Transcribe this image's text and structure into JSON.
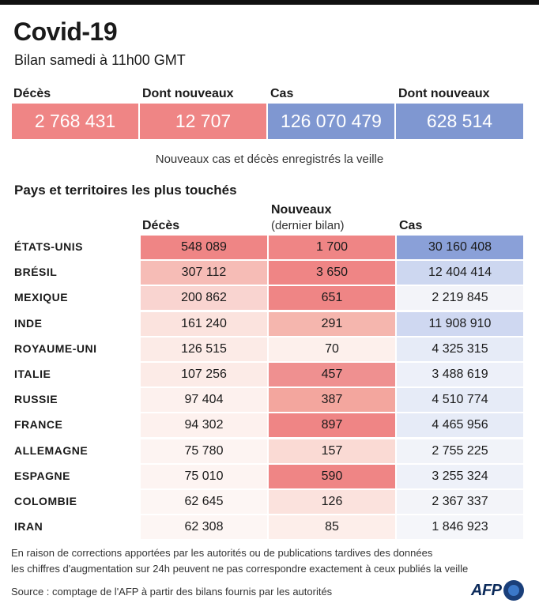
{
  "title": "Covid-19",
  "subtitle": "Bilan samedi à 11h00 GMT",
  "stats": [
    {
      "label": "Décès",
      "value": "2 768 431",
      "color": "#ef8585"
    },
    {
      "label": "Dont nouveaux",
      "value": "12 707",
      "color": "#ef8585"
    },
    {
      "label": "Cas",
      "value": "126 070 479",
      "color": "#7f97d1"
    },
    {
      "label": "Dont nouveaux",
      "value": "628 514",
      "color": "#7f97d1"
    }
  ],
  "note_top": "Nouveaux cas et décès enregistrés la veille",
  "section_title": "Pays et territoires les plus touchés",
  "columns": {
    "deaths": "Décès",
    "new": "Nouveaux",
    "new_sub": "(dernier bilan)",
    "cases": "Cas"
  },
  "rows": [
    {
      "country": "ÉTATS-UNIS",
      "deaths": "548 089",
      "new": "1 700",
      "cases": "30 160 408",
      "deaths_c": "#ef8585",
      "new_c": "#ef8585",
      "cases_c": "#8aa0d8"
    },
    {
      "country": "BRÉSIL",
      "deaths": "307 112",
      "new": "3 650",
      "cases": "12 404 414",
      "deaths_c": "#f6bcb6",
      "new_c": "#ef8585",
      "cases_c": "#cdd7f0"
    },
    {
      "country": "MEXIQUE",
      "deaths": "200 862",
      "new": "651",
      "cases": "2 219 845",
      "deaths_c": "#f9d4d0",
      "new_c": "#ef8585",
      "cases_c": "#f3f4f9"
    },
    {
      "country": "INDE",
      "deaths": "161 240",
      "new": "291",
      "cases": "11 908 910",
      "deaths_c": "#fbe3de",
      "new_c": "#f5b6ae",
      "cases_c": "#cfd8f1"
    },
    {
      "country": "ROYAUME-UNI",
      "deaths": "126 515",
      "new": "70",
      "cases": "4 325 315",
      "deaths_c": "#fcebe7",
      "new_c": "#fdf0ec",
      "cases_c": "#e6ebf7"
    },
    {
      "country": "ITALIE",
      "deaths": "107 256",
      "new": "457",
      "cases": "3 488 619",
      "deaths_c": "#fcebe7",
      "new_c": "#ef9090",
      "cases_c": "#edf0f9"
    },
    {
      "country": "RUSSIE",
      "deaths": "97 404",
      "new": "387",
      "cases": "4 510 774",
      "deaths_c": "#fdf1ee",
      "new_c": "#f3a69e",
      "cases_c": "#e6ebf7"
    },
    {
      "country": "FRANCE",
      "deaths": "94 302",
      "new": "897",
      "cases": "4 465 956",
      "deaths_c": "#fdf1ee",
      "new_c": "#ef8585",
      "cases_c": "#e6ebf7"
    },
    {
      "country": "ALLEMAGNE",
      "deaths": "75 780",
      "new": "157",
      "cases": "2 755 225",
      "deaths_c": "#fdf4f2",
      "new_c": "#fadad4",
      "cases_c": "#f1f3f9"
    },
    {
      "country": "ESPAGNE",
      "deaths": "75 010",
      "new": "590",
      "cases": "3 255 324",
      "deaths_c": "#fdf4f2",
      "new_c": "#ef8585",
      "cases_c": "#eef1f9"
    },
    {
      "country": "COLOMBIE",
      "deaths": "62 645",
      "new": "126",
      "cases": "2 367 337",
      "deaths_c": "#fdf6f4",
      "new_c": "#fbe2dd",
      "cases_c": "#f3f4f9"
    },
    {
      "country": "IRAN",
      "deaths": "62 308",
      "new": "85",
      "cases": "1 846 923",
      "deaths_c": "#fdf6f4",
      "new_c": "#fdeeea",
      "cases_c": "#f5f6fa"
    }
  ],
  "footnote_line1": "En raison de corrections apportées par les autorités ou de publications tardives des données",
  "footnote_line2": "les chiffres d'augmentation sur 24h peuvent ne pas correspondre exactement à ceux publiés la veille",
  "source": "Source : comptage de l'AFP à partir des bilans fournis par les autorités",
  "logo_text": "AFP"
}
